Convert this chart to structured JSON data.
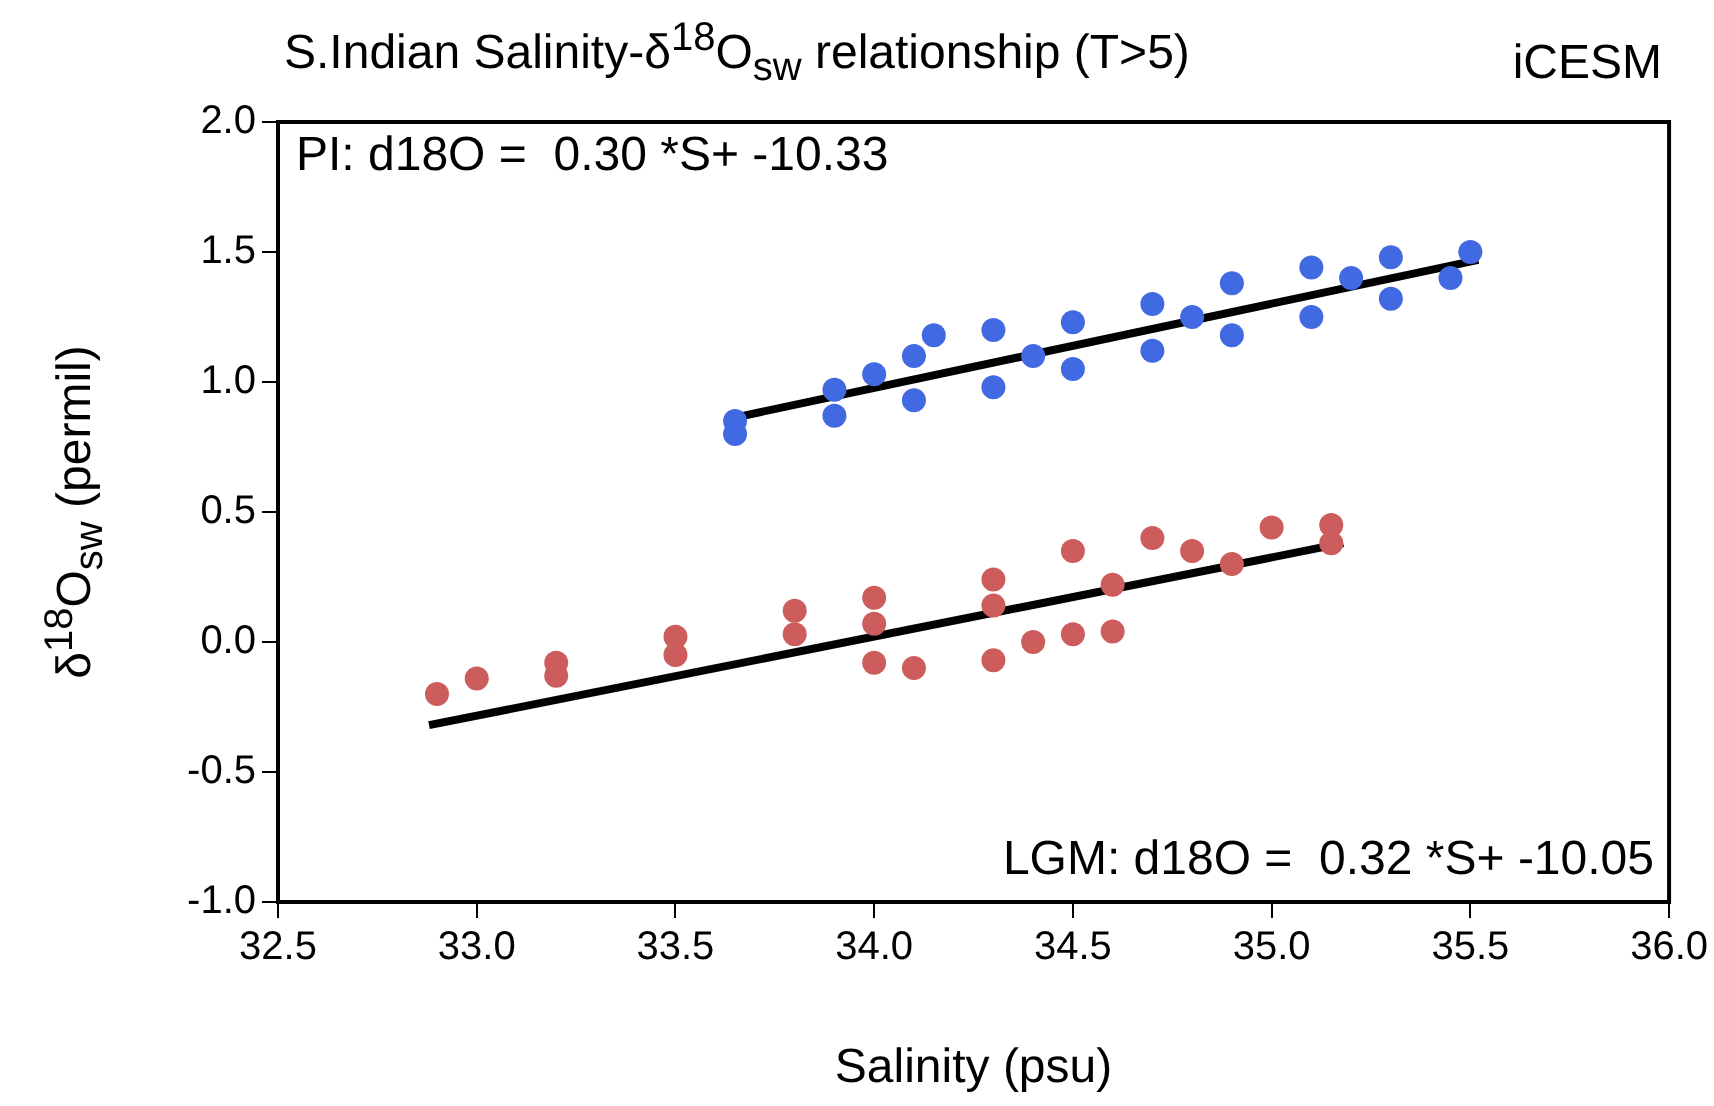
{
  "chart_data": {
    "type": "scatter",
    "title": "S.Indian Salinity-δ$^{18}$O$_{sw}$ relationship (T>5)",
    "xlabel": "Salinity (psu)",
    "ylabel": "δ$^{18}$O$_{sw}$ (permil)",
    "annotations": [
      "iCESM",
      "PI: d18O =  0.30 *S+ -10.33",
      "LGM: d18O =  0.32 *S+ -10.05"
    ],
    "xlim": [
      32.5,
      36.0
    ],
    "ylim": [
      -1.0,
      2.0
    ],
    "xticks": [
      32.5,
      {
        "value": 33,
        "label": "33.0"
      },
      33.5,
      {
        "value": 34,
        "label": "34.0"
      },
      34.5,
      {
        "value": 35,
        "label": "35.0"
      },
      35.5,
      {
        "value": 36,
        "label": "36.0"
      }
    ],
    "yticks": [
      {
        "value": -1,
        "label": "-1.0"
      },
      -0.5,
      {
        "value": 0,
        "label": "0.0"
      },
      0.5,
      {
        "value": 1,
        "label": "1.0"
      },
      1.5,
      {
        "value": 2,
        "label": "2.0"
      }
    ],
    "grid": false,
    "legend": false,
    "marker": "circle",
    "series": [
      {
        "color": "#4169e1",
        "x": [
          33.65,
          33.9,
          34.0,
          34.1,
          34.15,
          34.3,
          34.5,
          34.7,
          34.9,
          35.1,
          35.3,
          35.5,
          33.65,
          33.9,
          34.1,
          34.3,
          34.5,
          34.7,
          34.9,
          35.1,
          35.3,
          35.45,
          34.4,
          34.8,
          35.2
        ],
        "values": [
          0.85,
          0.97,
          1.03,
          1.1,
          1.18,
          1.2,
          1.23,
          1.3,
          1.38,
          1.44,
          1.48,
          1.5,
          0.8,
          0.87,
          0.93,
          0.98,
          1.05,
          1.12,
          1.18,
          1.25,
          1.32,
          1.4,
          1.1,
          1.25,
          1.4
        ]
      },
      {
        "color": "#cd5c5c",
        "x": [
          33.0,
          33.2,
          33.5,
          33.8,
          34.0,
          34.3,
          34.5,
          34.7,
          35.0,
          35.15,
          32.9,
          33.2,
          33.5,
          33.8,
          34.0,
          34.3,
          34.6,
          34.9,
          35.15,
          34.0,
          34.1,
          34.3,
          34.5,
          34.6,
          34.4,
          34.8
        ],
        "values": [
          -0.14,
          -0.08,
          0.02,
          0.12,
          0.17,
          0.24,
          0.35,
          0.4,
          0.44,
          0.45,
          -0.2,
          -0.13,
          -0.05,
          0.03,
          0.07,
          0.14,
          0.22,
          0.3,
          0.38,
          -0.08,
          -0.1,
          -0.07,
          0.03,
          0.04,
          0.0,
          0.35
        ]
      },
      {
        "type": "line",
        "marker": "none",
        "color": "#000000",
        "x": [
          33.67,
          35.52
        ],
        "values": [
          0.87,
          1.47
        ]
      },
      {
        "type": "line",
        "marker": "none",
        "color": "#000000",
        "x": [
          32.88,
          35.18
        ],
        "values": [
          -0.32,
          0.38
        ]
      }
    ]
  }
}
